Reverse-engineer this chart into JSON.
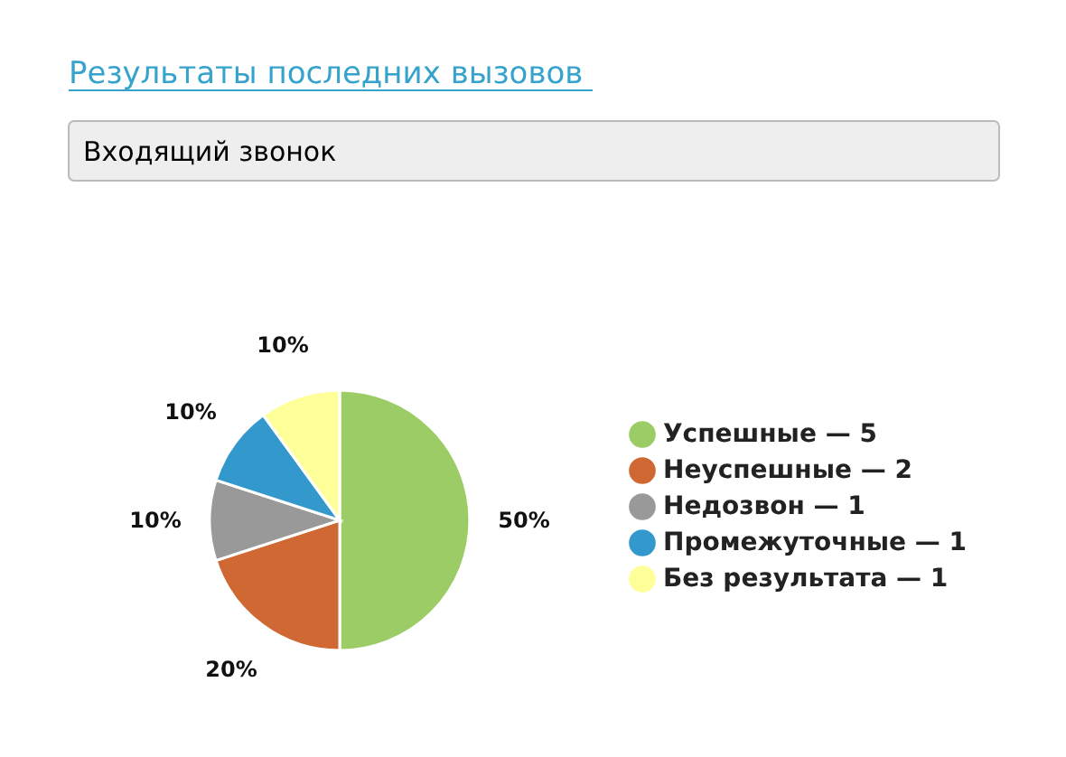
{
  "chart_data": {
    "type": "pie",
    "title": "Результаты последних вызовов",
    "subtitle": "Входящий звонок",
    "categories": [
      "Успешные — 5",
      "Неуспешные — 2",
      "Недозвон — 1",
      "Промежуточные — 1",
      "Без результата — 1"
    ],
    "values": [
      50,
      20,
      10,
      10,
      10
    ],
    "colors": [
      "#9ccc65",
      "#cf6832",
      "#999999",
      "#3399cc",
      "#ffff99"
    ],
    "value_labels": [
      "50%",
      "20%",
      "10%",
      "10%",
      "10%"
    ],
    "legend": "right"
  }
}
